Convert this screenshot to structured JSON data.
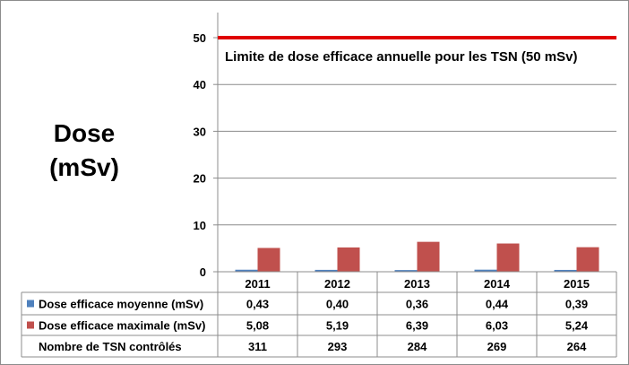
{
  "chart_data": {
    "type": "bar",
    "categories": [
      "2011",
      "2012",
      "2013",
      "2014",
      "2015"
    ],
    "series": [
      {
        "name": "Dose efficace moyenne (mSv)",
        "values": [
          0.43,
          0.4,
          0.36,
          0.44,
          0.39
        ],
        "labels": [
          "0,43",
          "0,40",
          "0,36",
          "0,44",
          "0,39"
        ],
        "color": "#4f81bd"
      },
      {
        "name": "Dose efficace maximale (mSv)",
        "values": [
          5.08,
          5.19,
          6.39,
          6.03,
          5.24
        ],
        "labels": [
          "5,08",
          "5,19",
          "6,39",
          "6,03",
          "5,24"
        ],
        "color": "#c0504d"
      }
    ],
    "table_extra_row": {
      "name": "Nombre de TSN contrôlés",
      "values": [
        "311",
        "293",
        "284",
        "269",
        "264"
      ]
    },
    "ylabel": "Dose\n(mSv)",
    "ylim": [
      0,
      50
    ],
    "yticks": [
      "0",
      "10",
      "20",
      "30",
      "40",
      "50"
    ],
    "grid": true,
    "limit_line": {
      "value": 50,
      "label": "Limite de dose efficace annuelle pour les TSN (50 mSv)",
      "color": "#e00000"
    }
  }
}
